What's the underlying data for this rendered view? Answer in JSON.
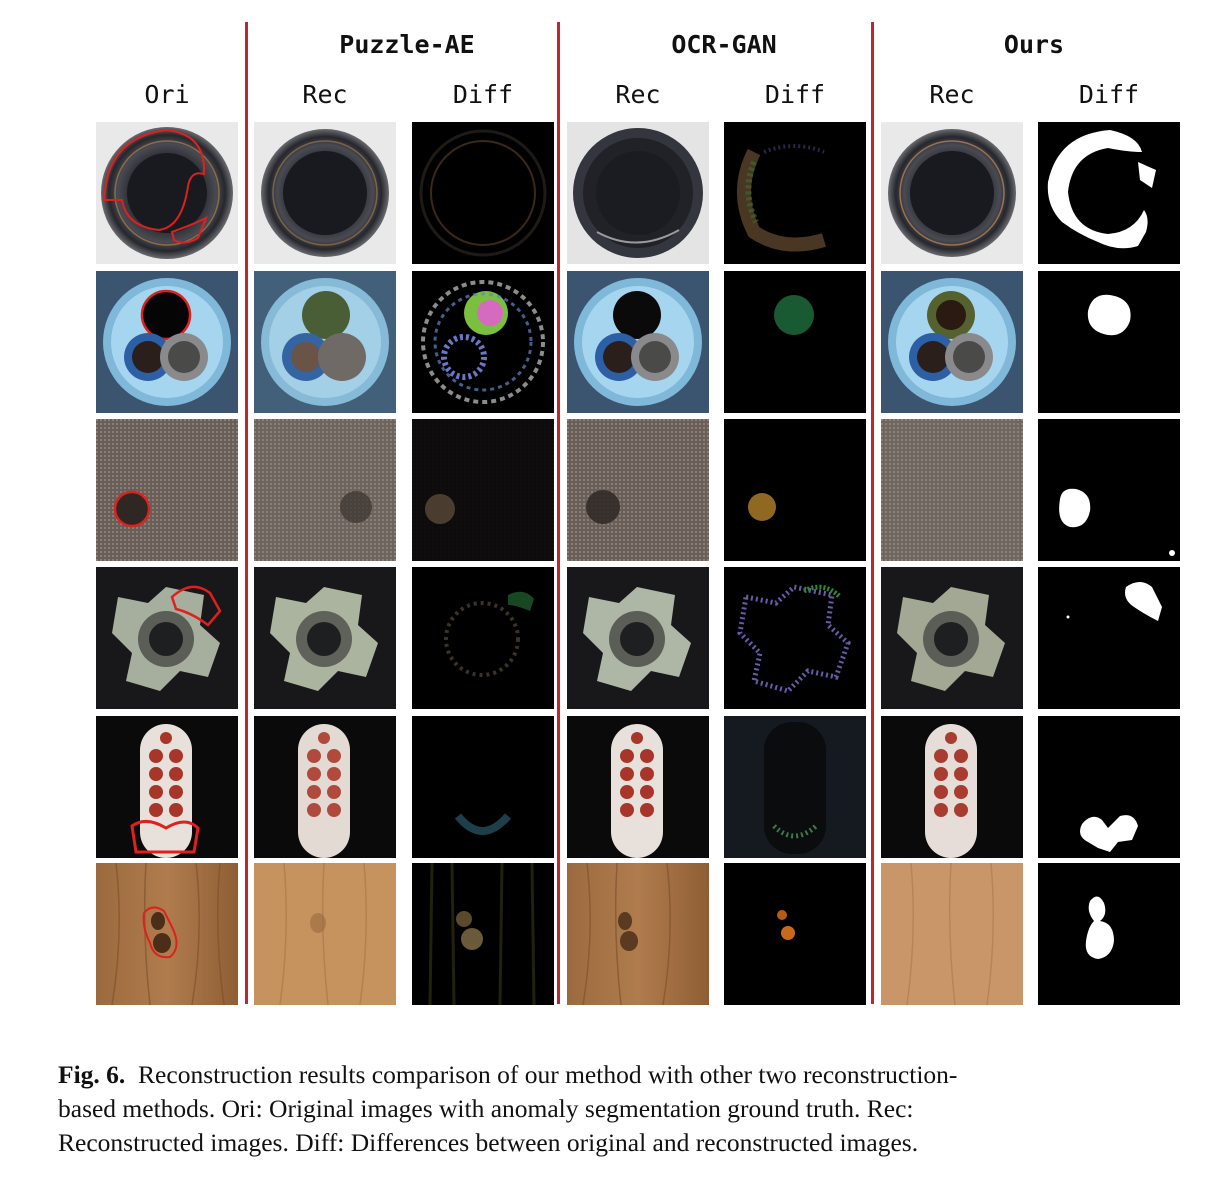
{
  "headers": {
    "groups": [
      "Puzzle-AE",
      "OCR-GAN",
      "Ours"
    ],
    "columns": [
      "Ori",
      "Rec",
      "Diff",
      "Rec",
      "Diff",
      "Rec",
      "Diff"
    ]
  },
  "rows": [
    {
      "name": "bottle"
    },
    {
      "name": "cable"
    },
    {
      "name": "carpet"
    },
    {
      "name": "metal-nut"
    },
    {
      "name": "toothbrush"
    },
    {
      "name": "wood"
    }
  ],
  "colors": {
    "divider": "#c0272d",
    "ground_truth_outline": "#e0201c"
  },
  "caption": {
    "label": "Fig. 6.",
    "line1": "Reconstruction results comparison of our method with other two reconstruction-",
    "line2": "based methods. Ori: Original images with anomaly segmentation ground truth. Rec:",
    "line3": "Reconstructed images. Diff: Differences between original and reconstructed images."
  }
}
